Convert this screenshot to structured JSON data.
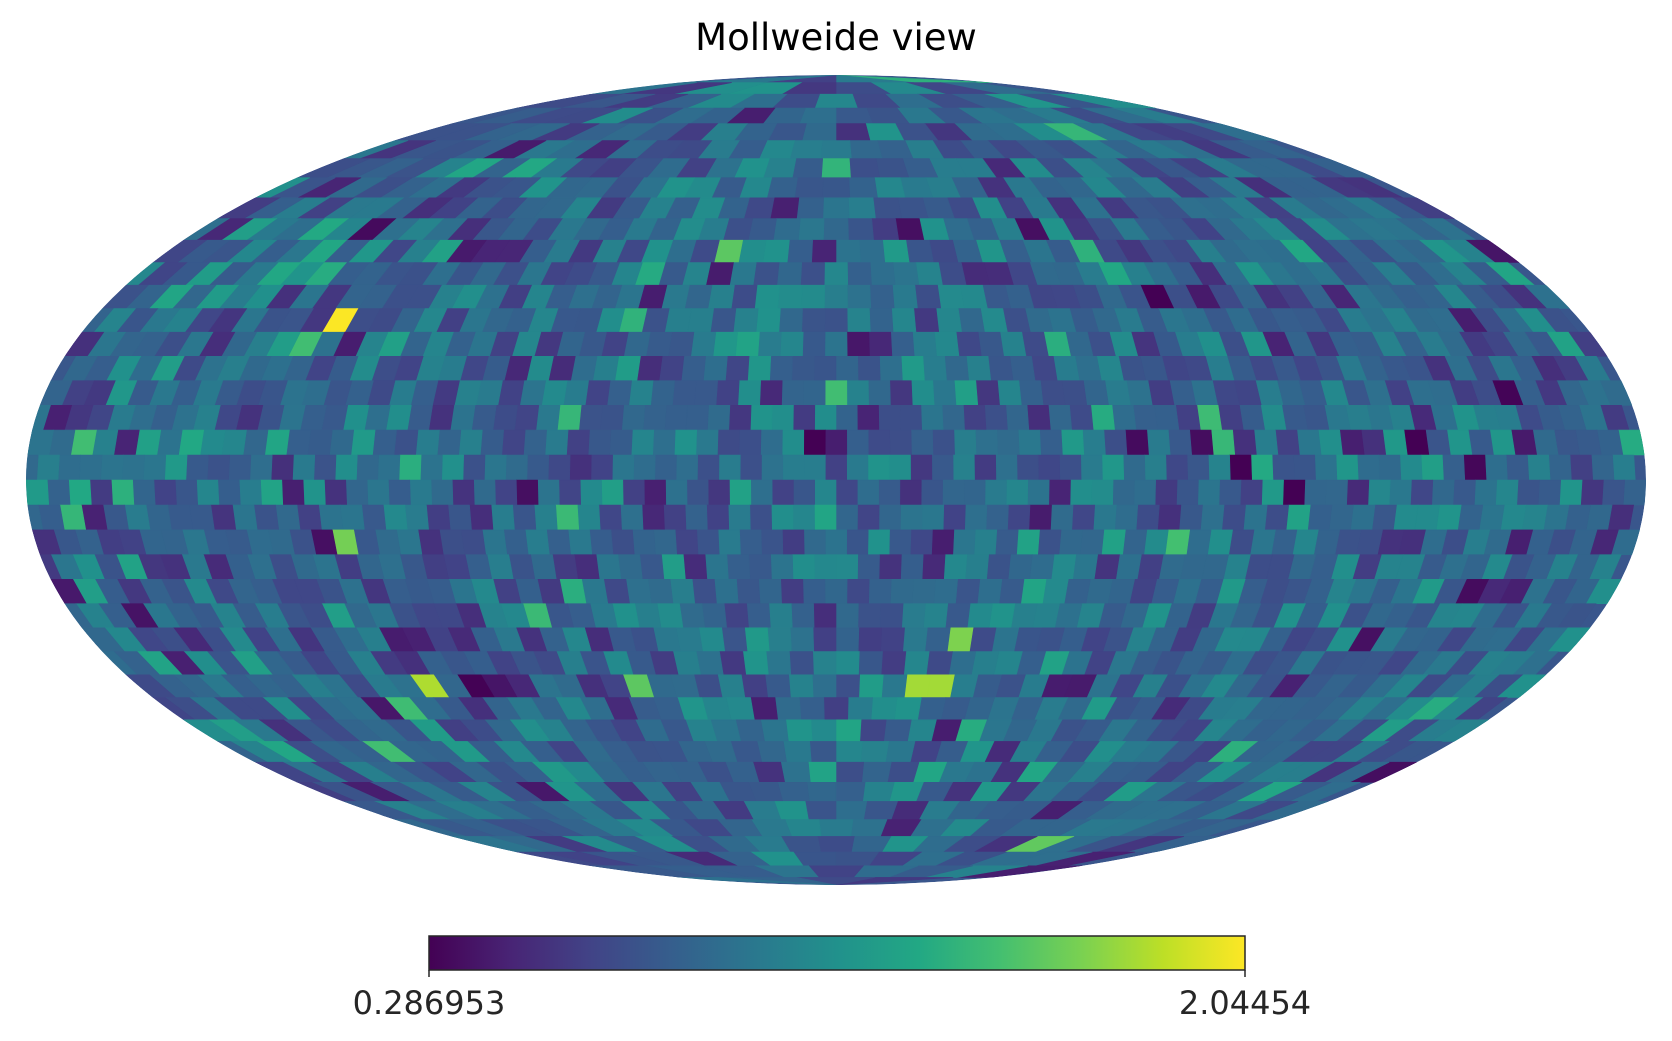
{
  "chart_data": {
    "type": "heatmap",
    "projection": "mollweide",
    "title": "Mollweide view",
    "colormap": "viridis",
    "colorbar": {
      "min_label": "0.286953",
      "max_label": "2.04454",
      "min": 0.286953,
      "max": 2.04454,
      "placement": "bottom"
    },
    "grid": false,
    "pixelization": "HEALPix-like, ~3072 cells of random values",
    "highlights": [
      {
        "lon_deg": 120,
        "lat_deg": 30,
        "value": 2.04
      },
      {
        "lon_deg": -25,
        "lat_deg": -36,
        "value": 1.8
      },
      {
        "lon_deg": -30,
        "lat_deg": -30,
        "value": 1.7
      },
      {
        "lon_deg": 50,
        "lat_deg": -39,
        "value": 1.6
      },
      {
        "lon_deg": 1,
        "lat_deg": 14,
        "value": 1.5
      },
      {
        "lon_deg": 135,
        "lat_deg": -52,
        "value": 1.5
      },
      {
        "lon_deg": 125,
        "lat_deg": 23,
        "value": 1.5
      }
    ]
  }
}
